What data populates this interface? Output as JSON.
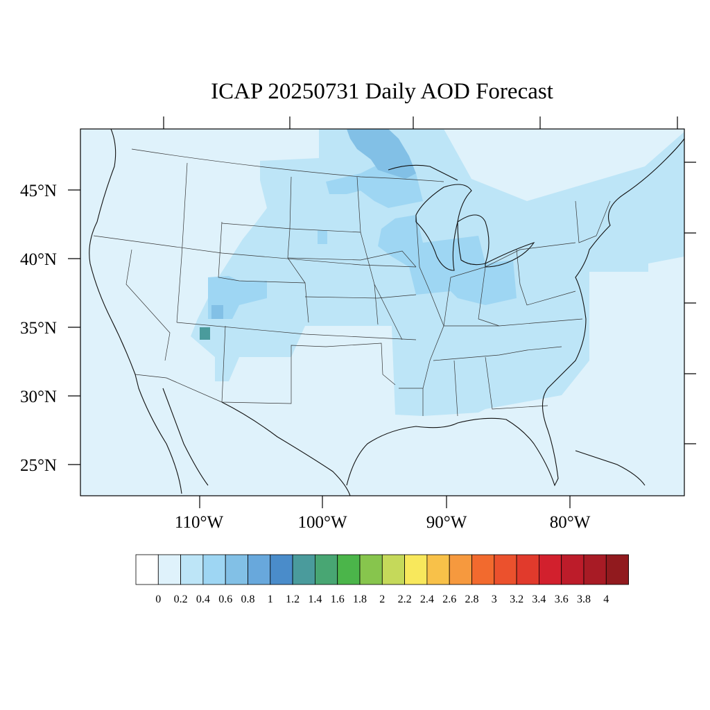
{
  "title": "ICAP 20250731 Daily AOD Forecast",
  "map": {
    "region": "Contiguous United States",
    "projection": "Lambert conformal",
    "background_color": "#dff2fb",
    "lat_ticks": [
      "25°N",
      "30°N",
      "35°N",
      "40°N",
      "45°N"
    ],
    "lon_ticks": [
      "110°W",
      "100°W",
      "90°W",
      "80°W"
    ]
  },
  "colorbar": {
    "labels": [
      "0",
      "0.2",
      "0.4",
      "0.6",
      "0.8",
      "1",
      "1.2",
      "1.4",
      "1.6",
      "1.8",
      "2",
      "2.2",
      "2.4",
      "2.6",
      "2.8",
      "3",
      "3.2",
      "3.4",
      "3.6",
      "3.8",
      "4"
    ],
    "colors": [
      "#ffffff",
      "#dff2fb",
      "#bde5f7",
      "#9ed6f3",
      "#82c0e6",
      "#68a8dc",
      "#4a8cca",
      "#4a9b9c",
      "#48a673",
      "#4bb54a",
      "#87c54d",
      "#c5d95a",
      "#f8e85c",
      "#f8c149",
      "#f6993e",
      "#f26a2e",
      "#eb512d",
      "#e13a2c",
      "#d2202d",
      "#bd1c2a",
      "#a81b25",
      "#911a1e"
    ]
  },
  "chart_data": {
    "type": "heatmap",
    "title": "ICAP 20250731 Daily AOD Forecast",
    "variable": "AOD",
    "levels": [
      0,
      0.2,
      0.4,
      0.6,
      0.8,
      1,
      1.2,
      1.4,
      1.6,
      1.8,
      2,
      2.2,
      2.4,
      2.6,
      2.8,
      3,
      3.2,
      3.4,
      3.6,
      3.8,
      4
    ],
    "x_range": [
      -119,
      -71
    ],
    "y_range": [
      23,
      49
    ],
    "regions": [
      {
        "name": "background",
        "aod": 0.1
      },
      {
        "name": "northern-plains-canada-plume",
        "aod": 0.3
      },
      {
        "name": "great-lakes-ohio-valley",
        "aod": 0.3
      },
      {
        "name": "southeast",
        "aod": 0.3
      },
      {
        "name": "northeast-offshore",
        "aod": 0.3
      },
      {
        "name": "colorado-utah",
        "aod": 0.3
      },
      {
        "name": "minnesota-ontario-core",
        "aod": 0.7
      },
      {
        "name": "wisconsin-illinois-indiana",
        "aod": 0.5
      },
      {
        "name": "utah-arizona-fire",
        "aod": 1.3
      }
    ]
  }
}
